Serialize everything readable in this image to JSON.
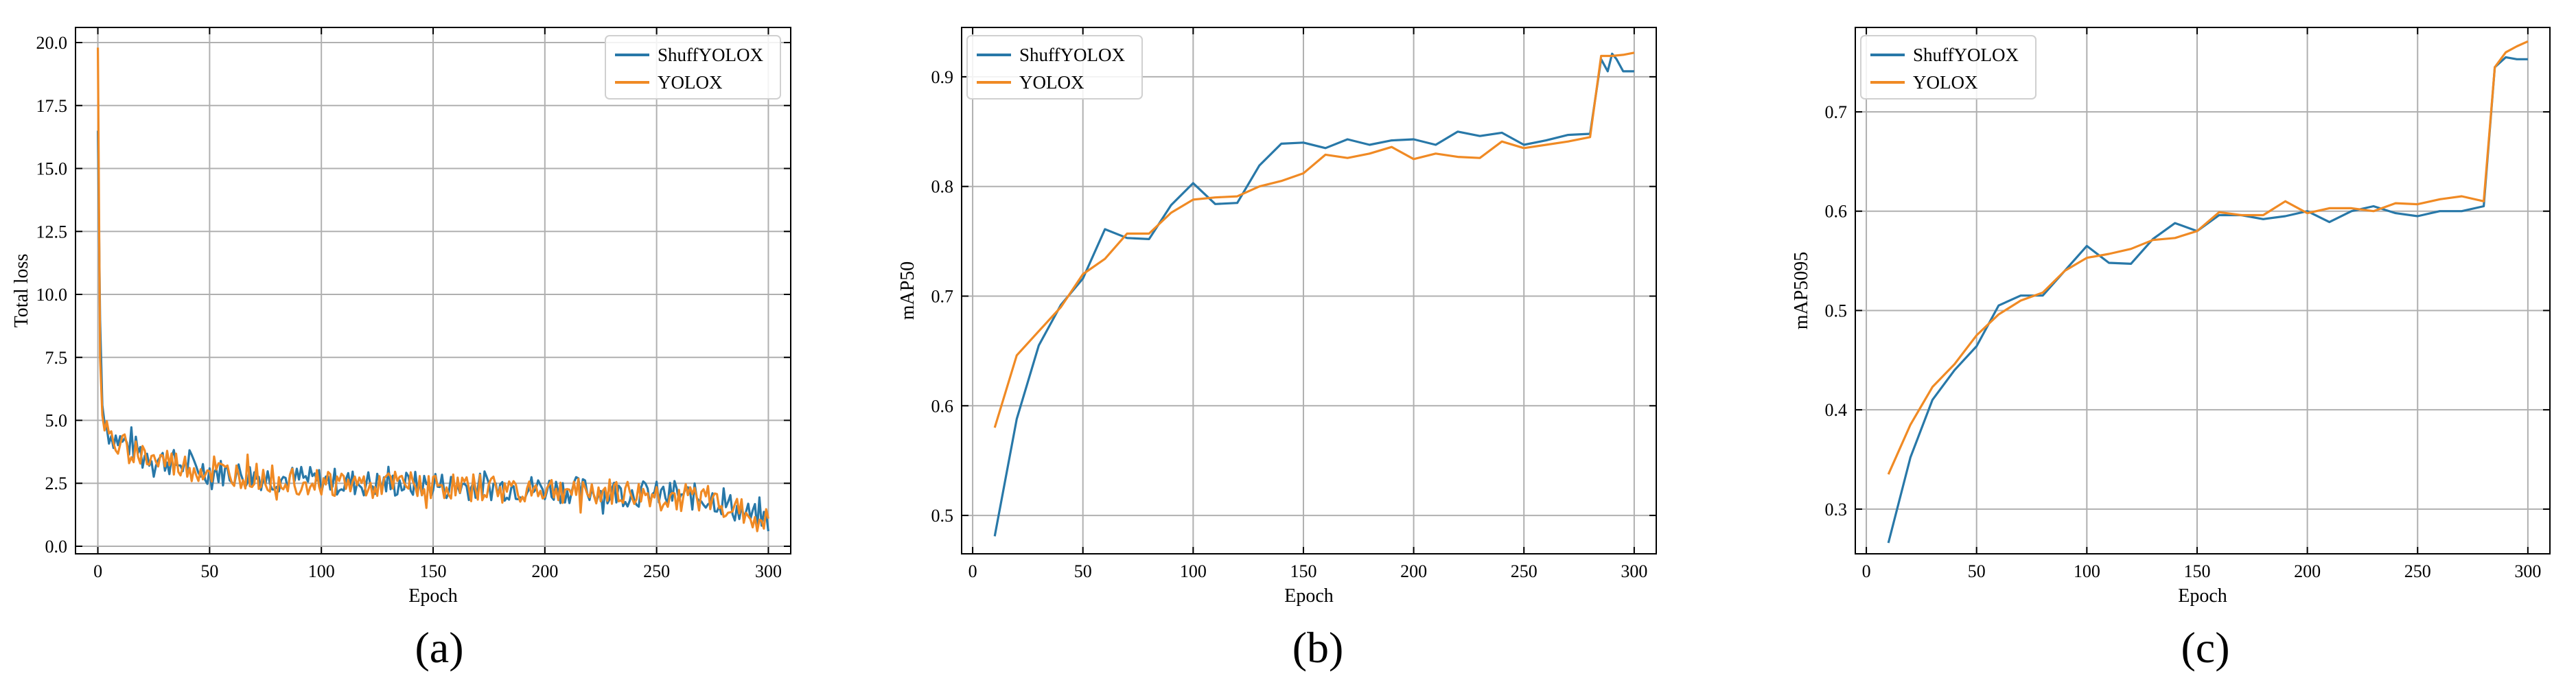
{
  "colors": {
    "shuffyolox": "#2878a8",
    "yolox": "#f08a24",
    "grid": "#b0b0b0",
    "axis": "#000000"
  },
  "chart_data": [
    {
      "type": "line",
      "panel_label": "(a)",
      "xlabel": "Epoch",
      "ylabel": "Total  loss",
      "xlim": [
        -10,
        310
      ],
      "ylim": [
        -0.3,
        20.6
      ],
      "xticks": [
        0,
        50,
        100,
        150,
        200,
        250,
        300
      ],
      "yticks": [
        0.0,
        2.5,
        5.0,
        7.5,
        10.0,
        12.5,
        15.0,
        17.5,
        20.0
      ],
      "ytick_labels": [
        "0.0",
        "2.5",
        "5.0",
        "7.5",
        "10.0",
        "12.5",
        "15.0",
        "17.5",
        "20.0"
      ],
      "grid": true,
      "legend_position": "top-right",
      "series": [
        {
          "name": "ShuffYOLOX",
          "color": "#2878a8",
          "noisy": true,
          "amp": 0.55,
          "seed": 7,
          "x": [
            0,
            1,
            2,
            3,
            5,
            8,
            12,
            16,
            20,
            25,
            30,
            40,
            50,
            60,
            70,
            80,
            100,
            120,
            140,
            160,
            180,
            200,
            220,
            240,
            260,
            275,
            285,
            292,
            300
          ],
          "values": [
            16.5,
            9.0,
            5.6,
            4.9,
            4.5,
            4.3,
            4.1,
            3.9,
            3.7,
            3.5,
            3.4,
            3.2,
            3.0,
            2.9,
            2.8,
            2.7,
            2.6,
            2.5,
            2.45,
            2.4,
            2.35,
            2.3,
            2.2,
            2.1,
            2.0,
            1.9,
            1.5,
            1.2,
            1.0
          ]
        },
        {
          "name": "YOLOX",
          "color": "#f08a24",
          "noisy": true,
          "amp": 0.55,
          "seed": 19,
          "x": [
            0,
            1,
            2,
            3,
            5,
            8,
            12,
            16,
            20,
            25,
            30,
            40,
            50,
            60,
            70,
            80,
            100,
            120,
            140,
            160,
            180,
            200,
            220,
            240,
            260,
            275,
            285,
            292,
            300
          ],
          "values": [
            19.8,
            7.5,
            5.2,
            4.6,
            4.3,
            4.1,
            3.9,
            3.8,
            3.6,
            3.45,
            3.35,
            3.1,
            2.95,
            2.85,
            2.75,
            2.65,
            2.55,
            2.45,
            2.4,
            2.35,
            2.3,
            2.25,
            2.15,
            2.05,
            1.95,
            1.85,
            1.45,
            1.15,
            0.95
          ]
        }
      ]
    },
    {
      "type": "line",
      "panel_label": "(b)",
      "xlabel": "Epoch",
      "ylabel": "mAP50",
      "xlim": [
        -5,
        310
      ],
      "ylim": [
        0.465,
        0.945
      ],
      "xticks": [
        0,
        50,
        100,
        150,
        200,
        250,
        300
      ],
      "yticks": [
        0.5,
        0.6,
        0.7,
        0.8,
        0.9
      ],
      "ytick_labels": [
        "0.5",
        "0.6",
        "0.7",
        "0.8",
        "0.9"
      ],
      "grid": true,
      "legend_position": "top-left",
      "series": [
        {
          "name": "ShuffYOLOX",
          "color": "#2878a8",
          "x": [
            10,
            20,
            30,
            40,
            50,
            60,
            70,
            80,
            90,
            100,
            110,
            120,
            130,
            140,
            150,
            160,
            170,
            180,
            190,
            200,
            210,
            220,
            230,
            240,
            250,
            260,
            270,
            280,
            285,
            288,
            290,
            292,
            295,
            300
          ],
          "values": [
            0.481,
            0.588,
            0.655,
            0.692,
            0.716,
            0.761,
            0.753,
            0.752,
            0.783,
            0.803,
            0.784,
            0.785,
            0.819,
            0.839,
            0.84,
            0.835,
            0.843,
            0.838,
            0.842,
            0.843,
            0.838,
            0.85,
            0.846,
            0.849,
            0.838,
            0.842,
            0.847,
            0.848,
            0.916,
            0.905,
            0.921,
            0.916,
            0.905,
            0.905
          ]
        },
        {
          "name": "YOLOX",
          "color": "#f08a24",
          "x": [
            10,
            20,
            30,
            40,
            50,
            60,
            70,
            80,
            90,
            100,
            110,
            120,
            130,
            140,
            150,
            160,
            170,
            180,
            190,
            200,
            210,
            220,
            230,
            240,
            250,
            260,
            270,
            280,
            285,
            290,
            295,
            300
          ],
          "values": [
            0.58,
            0.646,
            0.668,
            0.69,
            0.72,
            0.734,
            0.757,
            0.757,
            0.776,
            0.788,
            0.79,
            0.791,
            0.8,
            0.805,
            0.812,
            0.829,
            0.826,
            0.83,
            0.836,
            0.825,
            0.83,
            0.827,
            0.826,
            0.841,
            0.835,
            0.838,
            0.841,
            0.845,
            0.919,
            0.919,
            0.92,
            0.922
          ]
        }
      ]
    },
    {
      "type": "line",
      "panel_label": "(c)",
      "xlabel": "Epoch",
      "ylabel": "mAP5095",
      "xlim": [
        -5,
        310
      ],
      "ylim": [
        0.255,
        0.785
      ],
      "xticks": [
        0,
        50,
        100,
        150,
        200,
        250,
        300
      ],
      "yticks": [
        0.3,
        0.4,
        0.5,
        0.6,
        0.7
      ],
      "ytick_labels": [
        "0.3",
        "0.4",
        "0.5",
        "0.6",
        "0.7"
      ],
      "grid": true,
      "legend_position": "top-left",
      "series": [
        {
          "name": "ShuffYOLOX",
          "color": "#2878a8",
          "x": [
            10,
            20,
            30,
            40,
            50,
            60,
            70,
            80,
            90,
            100,
            110,
            120,
            130,
            140,
            150,
            160,
            170,
            180,
            190,
            200,
            210,
            220,
            230,
            240,
            250,
            260,
            270,
            280,
            285,
            290,
            295,
            300
          ],
          "values": [
            0.266,
            0.352,
            0.41,
            0.44,
            0.464,
            0.505,
            0.515,
            0.515,
            0.54,
            0.565,
            0.548,
            0.547,
            0.572,
            0.588,
            0.58,
            0.596,
            0.596,
            0.592,
            0.595,
            0.6,
            0.589,
            0.6,
            0.605,
            0.598,
            0.595,
            0.6,
            0.6,
            0.605,
            0.745,
            0.755,
            0.753,
            0.753
          ]
        },
        {
          "name": "YOLOX",
          "color": "#f08a24",
          "x": [
            10,
            20,
            30,
            40,
            50,
            60,
            70,
            80,
            90,
            100,
            110,
            120,
            130,
            140,
            150,
            160,
            170,
            180,
            190,
            200,
            210,
            220,
            230,
            240,
            250,
            260,
            270,
            280,
            285,
            290,
            295,
            300
          ],
          "values": [
            0.335,
            0.385,
            0.423,
            0.446,
            0.475,
            0.496,
            0.51,
            0.518,
            0.54,
            0.553,
            0.557,
            0.562,
            0.571,
            0.573,
            0.58,
            0.599,
            0.596,
            0.596,
            0.61,
            0.598,
            0.603,
            0.603,
            0.6,
            0.608,
            0.607,
            0.612,
            0.615,
            0.61,
            0.745,
            0.76,
            0.766,
            0.771
          ]
        }
      ]
    }
  ]
}
